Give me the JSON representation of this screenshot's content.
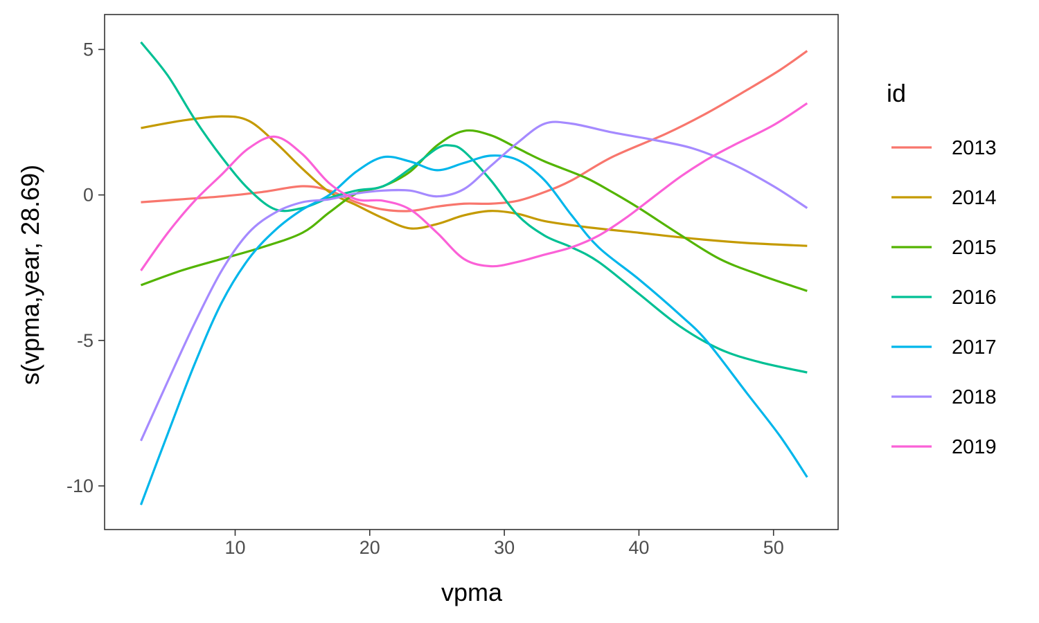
{
  "chart_data": {
    "type": "line",
    "title": "",
    "xlabel": "vpma",
    "ylabel": "s(vpma,year, 28.69)",
    "xlim": [
      0.3,
      54.8
    ],
    "ylim": [
      -11.5,
      6.2
    ],
    "xticks": [
      10,
      20,
      30,
      40,
      50
    ],
    "yticks": [
      5,
      0,
      -5,
      -10
    ],
    "grid": false,
    "legend": {
      "title": "id",
      "position": "right"
    },
    "series": [
      {
        "name": "2013",
        "color": "#F8766D",
        "points": [
          [
            3,
            -0.25
          ],
          [
            6,
            -0.15
          ],
          [
            9,
            -0.05
          ],
          [
            12,
            0.1
          ],
          [
            15,
            0.3
          ],
          [
            17,
            0.15
          ],
          [
            19,
            -0.25
          ],
          [
            21,
            -0.5
          ],
          [
            23,
            -0.55
          ],
          [
            25,
            -0.4
          ],
          [
            27,
            -0.3
          ],
          [
            29,
            -0.3
          ],
          [
            31,
            -0.2
          ],
          [
            33,
            0.1
          ],
          [
            35,
            0.5
          ],
          [
            38,
            1.3
          ],
          [
            42,
            2.1
          ],
          [
            45,
            2.8
          ],
          [
            48,
            3.6
          ],
          [
            50.5,
            4.3
          ],
          [
            52.5,
            4.95
          ]
        ]
      },
      {
        "name": "2014",
        "color": "#C49A00",
        "points": [
          [
            3,
            2.3
          ],
          [
            6,
            2.55
          ],
          [
            9,
            2.7
          ],
          [
            11,
            2.55
          ],
          [
            13,
            1.8
          ],
          [
            15,
            0.9
          ],
          [
            17,
            0.1
          ],
          [
            19,
            -0.35
          ],
          [
            21,
            -0.8
          ],
          [
            23,
            -1.15
          ],
          [
            25,
            -1.0
          ],
          [
            27,
            -0.7
          ],
          [
            29,
            -0.55
          ],
          [
            31,
            -0.65
          ],
          [
            33,
            -0.9
          ],
          [
            36,
            -1.1
          ],
          [
            40,
            -1.3
          ],
          [
            44,
            -1.5
          ],
          [
            48,
            -1.65
          ],
          [
            52.5,
            -1.75
          ]
        ]
      },
      {
        "name": "2015",
        "color": "#53B400",
        "points": [
          [
            3,
            -3.1
          ],
          [
            6,
            -2.6
          ],
          [
            9,
            -2.2
          ],
          [
            12,
            -1.8
          ],
          [
            15,
            -1.3
          ],
          [
            17,
            -0.6
          ],
          [
            19,
            0.05
          ],
          [
            21,
            0.3
          ],
          [
            23,
            0.8
          ],
          [
            25,
            1.7
          ],
          [
            27,
            2.2
          ],
          [
            29,
            2.05
          ],
          [
            31,
            1.6
          ],
          [
            33,
            1.15
          ],
          [
            36,
            0.6
          ],
          [
            38,
            0.1
          ],
          [
            40,
            -0.45
          ],
          [
            43,
            -1.35
          ],
          [
            46,
            -2.2
          ],
          [
            49,
            -2.75
          ],
          [
            52.5,
            -3.3
          ]
        ]
      },
      {
        "name": "2016",
        "color": "#00C094",
        "points": [
          [
            3,
            5.25
          ],
          [
            5,
            4.1
          ],
          [
            7,
            2.6
          ],
          [
            9,
            1.3
          ],
          [
            11,
            0.2
          ],
          [
            13,
            -0.5
          ],
          [
            15,
            -0.45
          ],
          [
            17,
            -0.1
          ],
          [
            19,
            0.15
          ],
          [
            21,
            0.3
          ],
          [
            23,
            0.9
          ],
          [
            25,
            1.6
          ],
          [
            26,
            1.7
          ],
          [
            27,
            1.5
          ],
          [
            29,
            0.5
          ],
          [
            31,
            -0.7
          ],
          [
            33,
            -1.4
          ],
          [
            35,
            -1.8
          ],
          [
            37,
            -2.3
          ],
          [
            40,
            -3.4
          ],
          [
            43,
            -4.5
          ],
          [
            46,
            -5.3
          ],
          [
            49,
            -5.75
          ],
          [
            52.5,
            -6.1
          ]
        ]
      },
      {
        "name": "2017",
        "color": "#00B6EB",
        "points": [
          [
            3,
            -10.65
          ],
          [
            5,
            -8.2
          ],
          [
            7,
            -5.8
          ],
          [
            9,
            -3.7
          ],
          [
            11,
            -2.2
          ],
          [
            13,
            -1.2
          ],
          [
            15,
            -0.5
          ],
          [
            17,
            0.0
          ],
          [
            19,
            0.8
          ],
          [
            21,
            1.3
          ],
          [
            23,
            1.15
          ],
          [
            25,
            0.85
          ],
          [
            27,
            1.1
          ],
          [
            29,
            1.35
          ],
          [
            31,
            1.2
          ],
          [
            33,
            0.5
          ],
          [
            35,
            -0.7
          ],
          [
            37,
            -1.8
          ],
          [
            40,
            -2.9
          ],
          [
            43,
            -4.1
          ],
          [
            45,
            -5.0
          ],
          [
            48,
            -6.8
          ],
          [
            50.5,
            -8.3
          ],
          [
            52.5,
            -9.7
          ]
        ]
      },
      {
        "name": "2018",
        "color": "#A58AFF",
        "points": [
          [
            3,
            -8.45
          ],
          [
            5,
            -6.4
          ],
          [
            7,
            -4.4
          ],
          [
            9,
            -2.6
          ],
          [
            11,
            -1.3
          ],
          [
            13,
            -0.6
          ],
          [
            15,
            -0.25
          ],
          [
            17,
            -0.15
          ],
          [
            19,
            0.05
          ],
          [
            21,
            0.15
          ],
          [
            23,
            0.15
          ],
          [
            25,
            -0.05
          ],
          [
            27,
            0.2
          ],
          [
            29,
            1.0
          ],
          [
            31,
            1.8
          ],
          [
            33,
            2.45
          ],
          [
            35,
            2.45
          ],
          [
            38,
            2.15
          ],
          [
            41,
            1.9
          ],
          [
            44,
            1.6
          ],
          [
            47,
            1.05
          ],
          [
            50,
            0.3
          ],
          [
            52.5,
            -0.45
          ]
        ]
      },
      {
        "name": "2019",
        "color": "#FB61D7",
        "points": [
          [
            3,
            -2.6
          ],
          [
            5,
            -1.3
          ],
          [
            7,
            -0.2
          ],
          [
            9,
            0.7
          ],
          [
            11,
            1.6
          ],
          [
            13,
            2.0
          ],
          [
            15,
            1.4
          ],
          [
            17,
            0.4
          ],
          [
            19,
            -0.15
          ],
          [
            21,
            -0.2
          ],
          [
            23,
            -0.5
          ],
          [
            25,
            -1.3
          ],
          [
            27,
            -2.2
          ],
          [
            29,
            -2.45
          ],
          [
            31,
            -2.3
          ],
          [
            33,
            -2.05
          ],
          [
            35,
            -1.8
          ],
          [
            37,
            -1.4
          ],
          [
            39,
            -0.8
          ],
          [
            41,
            -0.1
          ],
          [
            43,
            0.6
          ],
          [
            45,
            1.2
          ],
          [
            47,
            1.7
          ],
          [
            50,
            2.4
          ],
          [
            52.5,
            3.15
          ]
        ]
      }
    ]
  }
}
